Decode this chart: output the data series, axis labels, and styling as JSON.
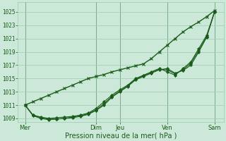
{
  "title": "",
  "xlabel": "Pression niveau de la mer( hPa )",
  "ylim": [
    1008.5,
    1026.5
  ],
  "yticks": [
    1009,
    1011,
    1013,
    1015,
    1017,
    1019,
    1021,
    1023,
    1025
  ],
  "xtick_labels": [
    "Mer",
    "",
    "Dim",
    "Jeu",
    "",
    "Ven",
    "",
    "Sam"
  ],
  "xtick_positions": [
    0,
    1.5,
    3,
    4,
    5,
    6,
    7,
    8
  ],
  "bg_color": "#cce8d8",
  "grid_color": "#99ccaa",
  "vline_color": "#336633",
  "line_color": "#1a5c1a",
  "marker_color": "#1a5c1a",
  "n_points": 25,
  "line_straight": [
    1011.0,
    1011.5,
    1012.0,
    1012.5,
    1013.0,
    1013.5,
    1014.0,
    1014.5,
    1015.0,
    1015.3,
    1015.6,
    1016.0,
    1016.3,
    1016.6,
    1016.9,
    1017.2,
    1018.0,
    1019.0,
    1020.0,
    1021.0,
    1022.0,
    1022.8,
    1023.5,
    1024.3,
    1025.2
  ],
  "line_dip1": [
    1011.0,
    1009.5,
    1009.2,
    1009.0,
    1009.1,
    1009.2,
    1009.3,
    1009.5,
    1009.8,
    1010.5,
    1011.5,
    1012.5,
    1013.3,
    1014.0,
    1015.0,
    1015.5,
    1016.0,
    1016.5,
    1016.0,
    1015.5,
    1016.5,
    1017.5,
    1019.5,
    1021.5,
    1025.0
  ],
  "line_dip2": [
    1011.0,
    1009.5,
    1009.1,
    1008.9,
    1008.9,
    1009.0,
    1009.1,
    1009.3,
    1009.6,
    1010.2,
    1011.0,
    1012.2,
    1013.0,
    1013.8,
    1014.8,
    1015.3,
    1015.8,
    1016.3,
    1016.5,
    1015.8,
    1016.2,
    1017.0,
    1019.0,
    1021.2,
    1025.0
  ],
  "line_dip3": [
    1011.0,
    1009.4,
    1009.0,
    1008.8,
    1008.9,
    1009.0,
    1009.2,
    1009.4,
    1009.7,
    1010.3,
    1011.2,
    1012.3,
    1013.1,
    1013.9,
    1014.9,
    1015.4,
    1015.9,
    1016.4,
    1016.3,
    1015.7,
    1016.3,
    1017.3,
    1019.2,
    1021.3,
    1025.1
  ]
}
